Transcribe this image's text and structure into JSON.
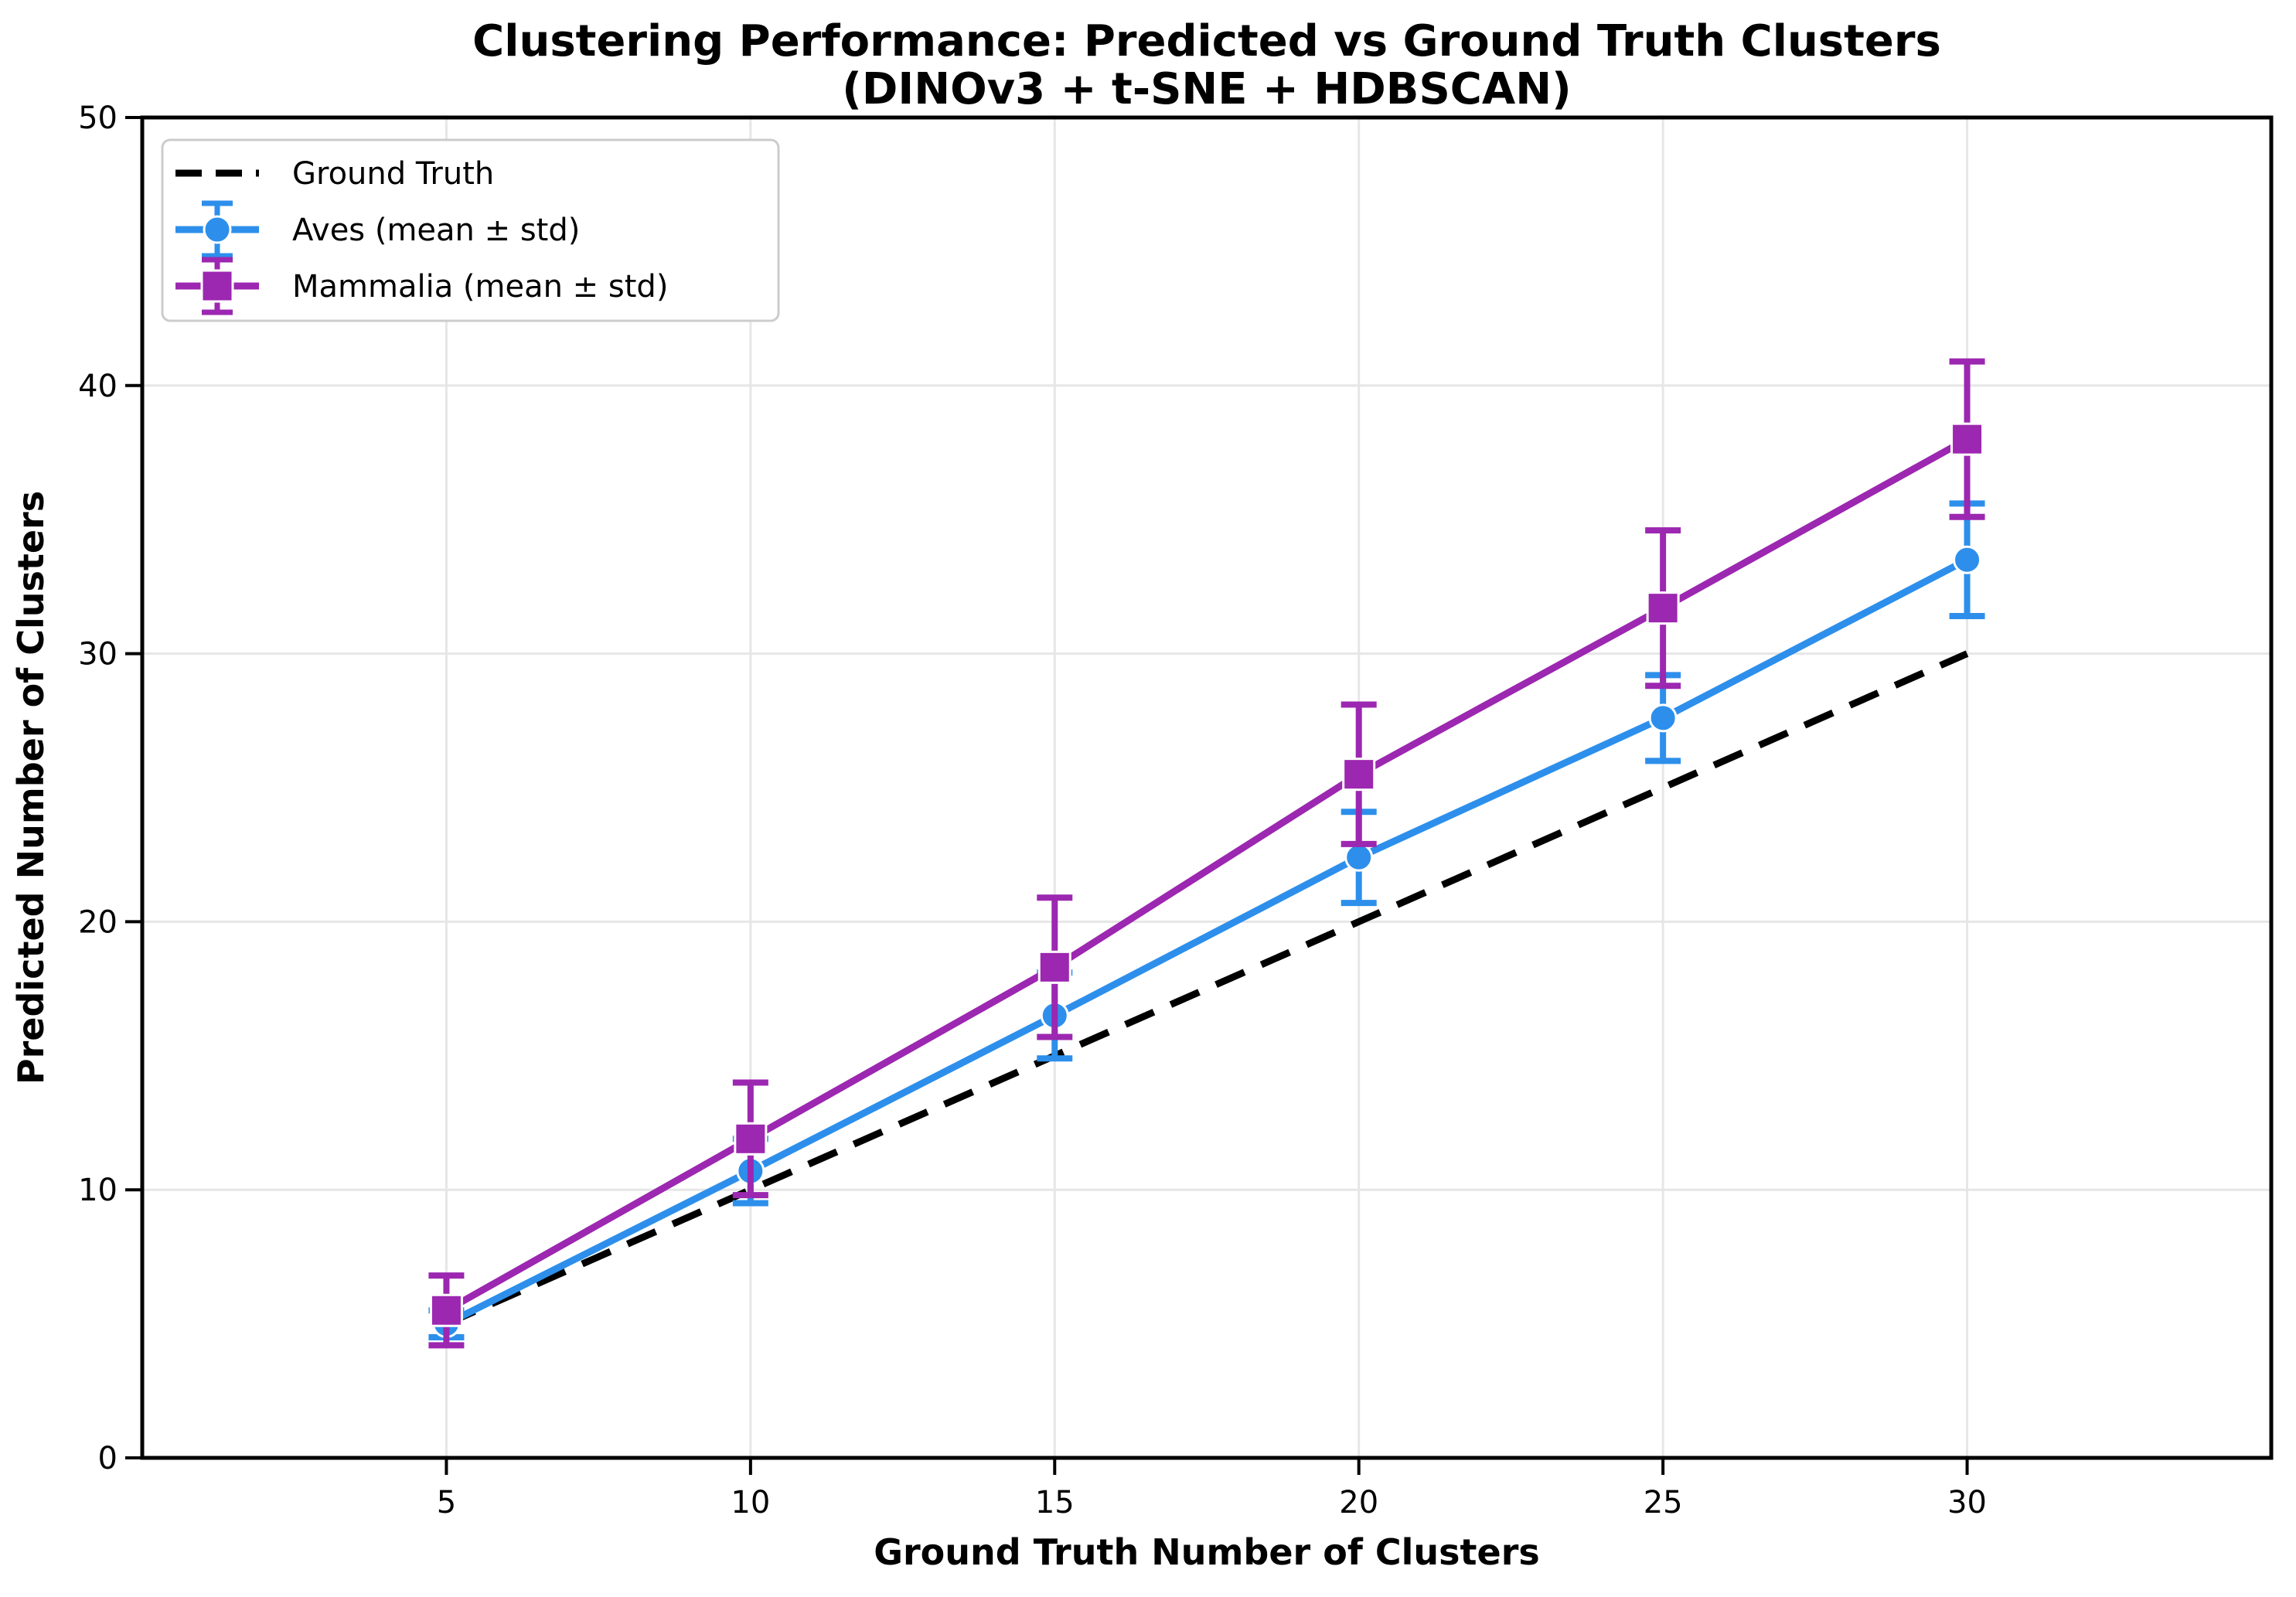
{
  "chart_data": {
    "type": "line",
    "title_line1": "Clustering Performance: Predicted vs Ground Truth Clusters",
    "title_line2": "(DINOv3 + t-SNE + HDBSCAN)",
    "xlabel": "Ground Truth Number of Clusters",
    "ylabel": "Predicted Number of Clusters",
    "x": [
      5,
      10,
      15,
      20,
      25,
      30
    ],
    "xlim": [
      0,
      35
    ],
    "ylim": [
      0,
      50
    ],
    "xticks": [
      5,
      10,
      15,
      20,
      25,
      30
    ],
    "yticks": [
      0,
      10,
      20,
      30,
      40,
      50
    ],
    "grid": true,
    "grid_color": "#e6e6e6",
    "spine_color": "#000000",
    "legend_position": "upper-left",
    "legend_border_color": "#cccccc",
    "series": [
      {
        "name": "Ground Truth",
        "style": "dashed",
        "marker": "none",
        "color": "#000000",
        "values": [
          5,
          10,
          15,
          20,
          25,
          30
        ]
      },
      {
        "name": "Aves (mean ± std)",
        "style": "solid-errorbar",
        "marker": "circle",
        "color": "#2D8FEB",
        "values": [
          5.0,
          10.7,
          16.5,
          22.4,
          27.6,
          33.5
        ],
        "std": [
          0.5,
          1.2,
          1.6,
          1.7,
          1.6,
          2.1
        ]
      },
      {
        "name": "Mammalia (mean ± std)",
        "style": "solid-errorbar",
        "marker": "square",
        "color": "#9C27B0",
        "values": [
          5.5,
          11.9,
          18.3,
          25.5,
          31.7,
          38.0
        ],
        "std": [
          1.3,
          2.1,
          2.6,
          2.6,
          2.9,
          2.9
        ]
      }
    ]
  }
}
